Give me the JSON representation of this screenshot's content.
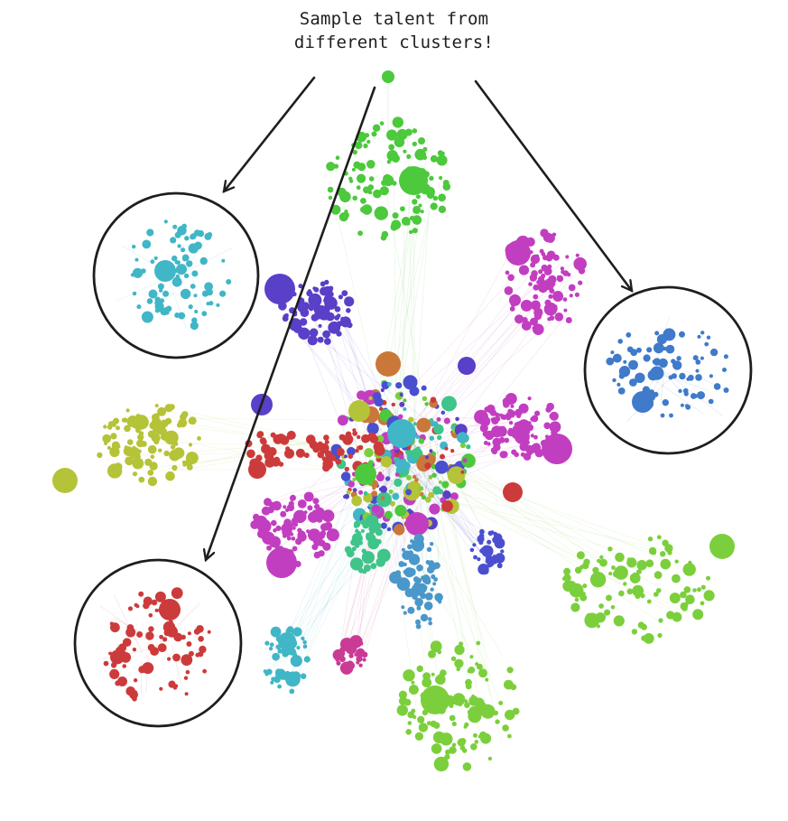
{
  "annotation": {
    "line1": "Sample talent from",
    "line2": "different clusters!"
  },
  "colors": {
    "ink": "#1e1e1e",
    "green": "#4cc93c",
    "cyan": "#40b6c6",
    "purple": "#5a3fc8",
    "magenta": "#c23ec0",
    "olive": "#b5c338",
    "lime": "#7ccf3c",
    "red": "#cc3b3b",
    "blue": "#3f7acb",
    "orange": "#c9783a",
    "teal": "#3fc48a",
    "pink": "#c93b95",
    "steel": "#4a97c9",
    "indigo": "#4a4fcf"
  },
  "clusters": [
    {
      "name": "green-top-cluster",
      "color": "green"
    },
    {
      "name": "magenta-top-cluster",
      "color": "magenta"
    },
    {
      "name": "purple-cluster",
      "color": "purple"
    },
    {
      "name": "olive-cluster",
      "color": "olive"
    },
    {
      "name": "magenta-right-cluster",
      "color": "magenta"
    },
    {
      "name": "lime-right-cluster",
      "color": "lime"
    },
    {
      "name": "green-bottom-cluster",
      "color": "lime"
    },
    {
      "name": "magenta-bottom-left-cluster",
      "color": "magenta"
    },
    {
      "name": "teal-cluster",
      "color": "teal"
    },
    {
      "name": "steel-cluster",
      "color": "steel"
    },
    {
      "name": "indigo-cluster",
      "color": "indigo"
    },
    {
      "name": "cyan-bottom-cluster",
      "color": "cyan"
    },
    {
      "name": "pink-bottom-cluster",
      "color": "pink"
    },
    {
      "name": "core-cluster",
      "color": "orange"
    }
  ],
  "callouts": [
    {
      "name": "callout-cyan",
      "color": "cyan"
    },
    {
      "name": "callout-blue",
      "color": "blue"
    },
    {
      "name": "callout-red",
      "color": "red"
    }
  ]
}
